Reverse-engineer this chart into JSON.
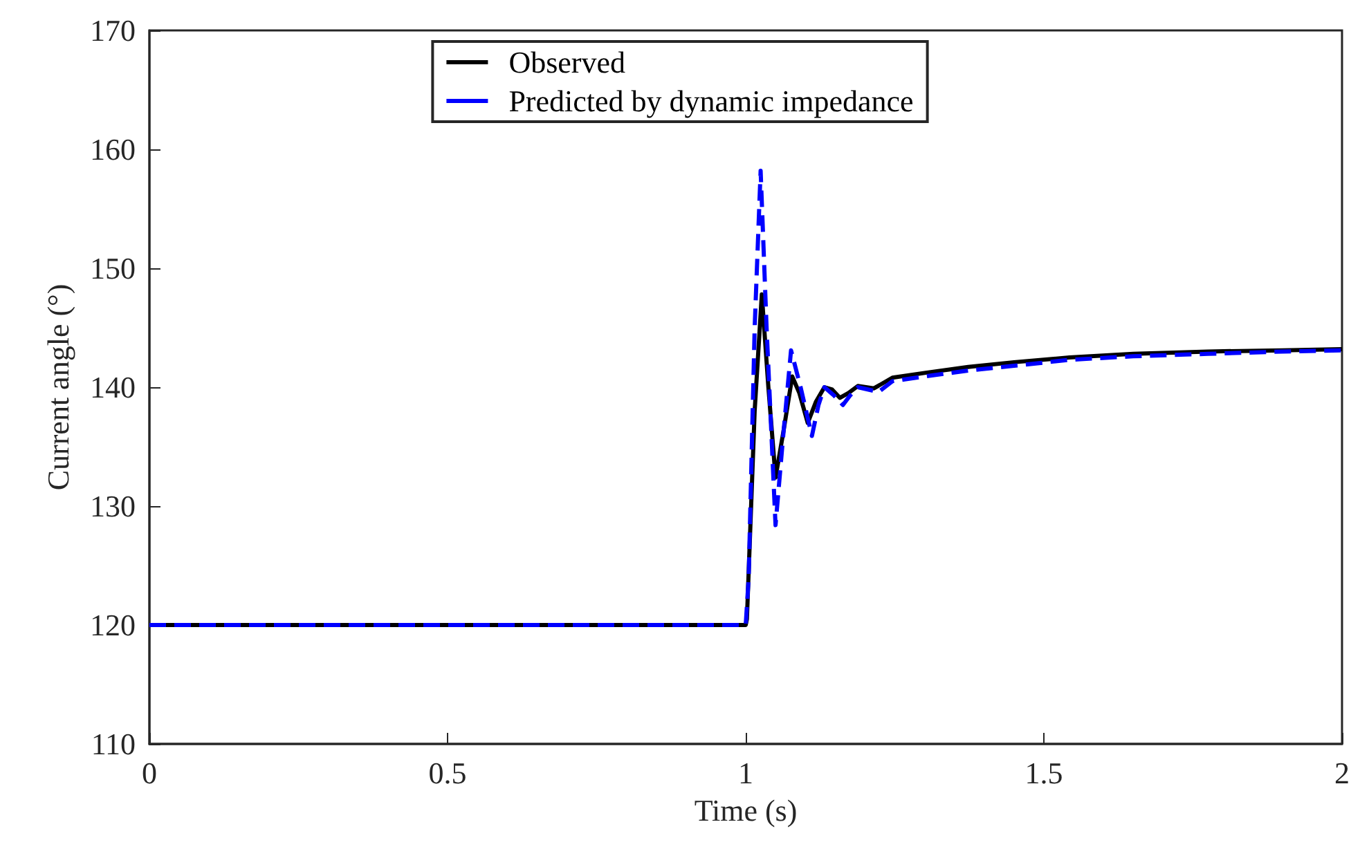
{
  "chart_data": {
    "type": "line",
    "xlabel": "Time (s)",
    "ylabel": "Current angle (°)",
    "xlim": [
      0,
      2
    ],
    "xticks": [
      0,
      0.5,
      1,
      1.5,
      2
    ],
    "ylim": [
      110,
      170
    ],
    "yticks": [
      110,
      120,
      130,
      140,
      150,
      160,
      170
    ],
    "grid": false,
    "legend": "top",
    "marker": "none",
    "series": [
      {
        "name": "Observed",
        "color": "#000000",
        "line_style": "solid",
        "x": [
          0,
          1.0,
          1.002,
          1.015,
          1.027,
          1.038,
          1.05,
          1.064,
          1.078,
          1.09,
          1.104,
          1.118,
          1.132,
          1.145,
          1.158,
          1.172,
          1.188,
          1.215,
          1.246,
          1.3,
          1.373,
          1.45,
          1.543,
          1.65,
          1.775,
          1.9,
          2.0
        ],
        "values": [
          120,
          120,
          120.5,
          138,
          147.8,
          140,
          132.4,
          136.5,
          140.9,
          139.5,
          137.0,
          138.8,
          140.0,
          139.8,
          139.1,
          139.5,
          140.1,
          139.9,
          140.8,
          141.2,
          141.7,
          142.1,
          142.5,
          142.8,
          143.0,
          143.1,
          143.2
        ]
      },
      {
        "name": "Predicted by dynamic impedance",
        "color": "#0000ff",
        "line_style": "dashed",
        "x": [
          0,
          1.0,
          1.005,
          1.015,
          1.025,
          1.035,
          1.05,
          1.063,
          1.076,
          1.092,
          1.111,
          1.122,
          1.132,
          1.148,
          1.163,
          1.175,
          1.188,
          1.223,
          1.246,
          1.3,
          1.373,
          1.45,
          1.543,
          1.65,
          1.775,
          1.9,
          2.0
        ],
        "values": [
          120,
          120,
          124,
          145,
          158.2,
          145,
          128.4,
          136,
          143.1,
          140,
          135.9,
          138.5,
          140.0,
          139.3,
          138.5,
          139.3,
          140.0,
          139.6,
          140.5,
          140.9,
          141.4,
          141.8,
          142.3,
          142.6,
          142.8,
          143.0,
          143.1
        ]
      }
    ]
  }
}
